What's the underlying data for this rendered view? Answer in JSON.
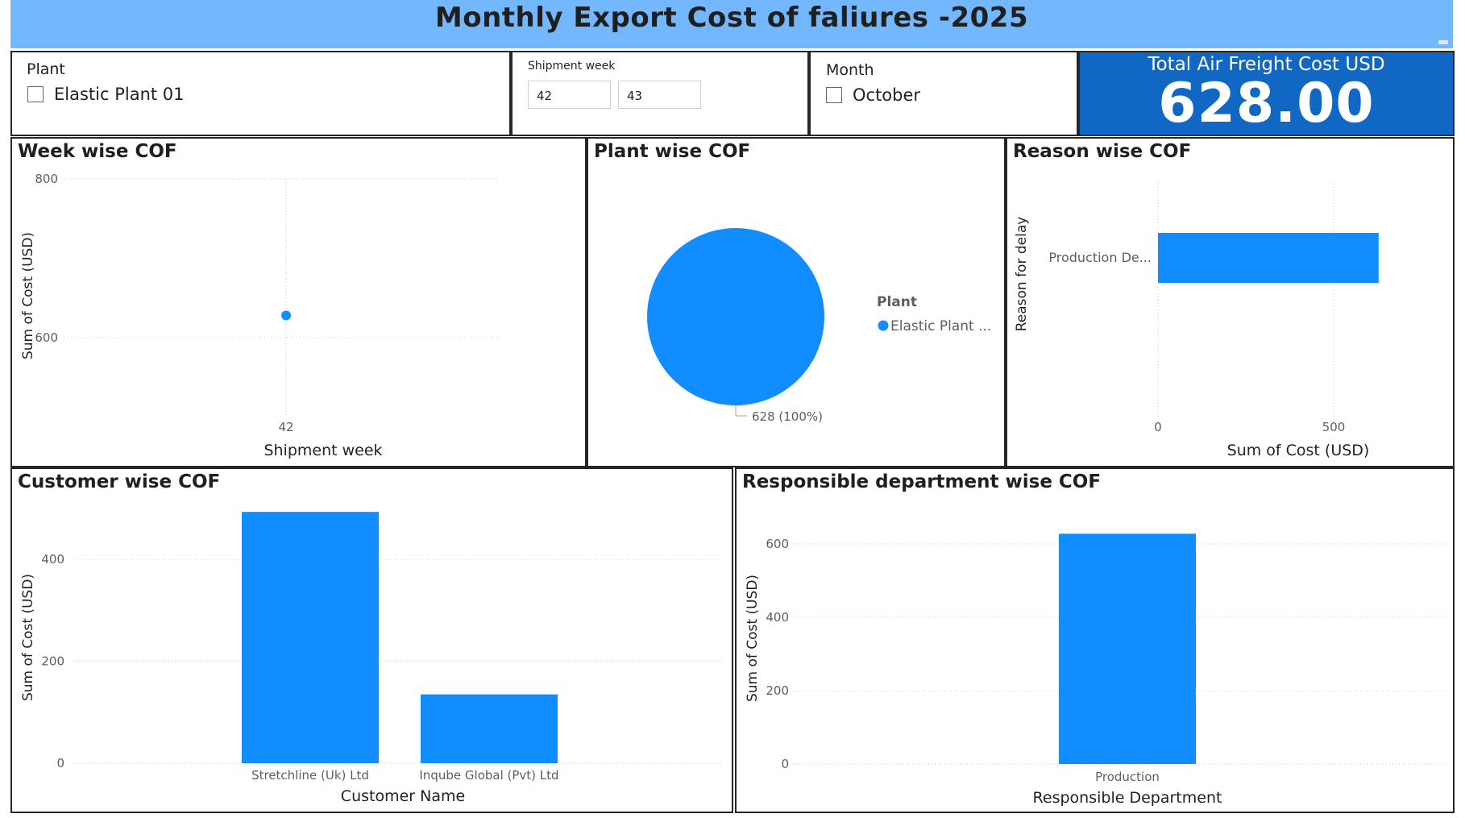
{
  "header": {
    "title": "Monthly Export Cost of faliures -2025"
  },
  "slicers": {
    "plant": {
      "title": "Plant",
      "option": "Elastic Plant 01"
    },
    "shipment_week": {
      "title": "Shipment week",
      "from": "42",
      "to": "43"
    },
    "month": {
      "title": "Month",
      "option": "October"
    }
  },
  "card": {
    "label": "Total Air Freight Cost USD",
    "value": "628.00"
  },
  "colors": {
    "bar": "#118dff",
    "header": "#73b7ff",
    "card": "#1168c4"
  },
  "chart_data": [
    {
      "id": "week",
      "type": "scatter",
      "title": "Week wise COF",
      "xlabel": "Shipment week",
      "ylabel": "Sum of Cost (USD)",
      "ylim": [
        500,
        800
      ],
      "yticks": [
        600,
        800
      ],
      "x_ticks": [
        "42"
      ],
      "points": [
        {
          "x": "42",
          "y": 628
        }
      ],
      "grid": true
    },
    {
      "id": "plant",
      "type": "pie",
      "title": "Plant wise COF",
      "legend_title": "Plant",
      "legend_label": "Elastic Plant ...",
      "slices": [
        {
          "label": "Elastic Plant 01",
          "value": 628,
          "data_label": "628 (100%)"
        }
      ],
      "legend": "right"
    },
    {
      "id": "reason",
      "type": "bar",
      "orientation": "horizontal",
      "title": "Reason wise COF",
      "xlabel": "Sum of Cost (USD)",
      "ylabel": "Reason for delay",
      "categories": [
        "Production De..."
      ],
      "values": [
        628
      ],
      "xlim": [
        0,
        750
      ],
      "xticks": [
        0,
        500
      ],
      "grid": true
    },
    {
      "id": "customer",
      "type": "bar",
      "title": "Customer wise COF",
      "xlabel": "Customer Name",
      "ylabel": "Sum of Cost (USD)",
      "categories": [
        "Stretchline (Uk) Ltd",
        "Inqube Global (Pvt) Ltd"
      ],
      "values": [
        493,
        135
      ],
      "ylim": [
        0,
        500
      ],
      "yticks": [
        0,
        200,
        400
      ],
      "grid": true
    },
    {
      "id": "dept",
      "type": "bar",
      "title": "Responsible department wise COF",
      "xlabel": "Responsible Department",
      "ylabel": "Sum of Cost (USD)",
      "categories": [
        "Production"
      ],
      "values": [
        628
      ],
      "ylim": [
        0,
        650
      ],
      "yticks": [
        0,
        200,
        400,
        600
      ],
      "grid": true
    }
  ]
}
